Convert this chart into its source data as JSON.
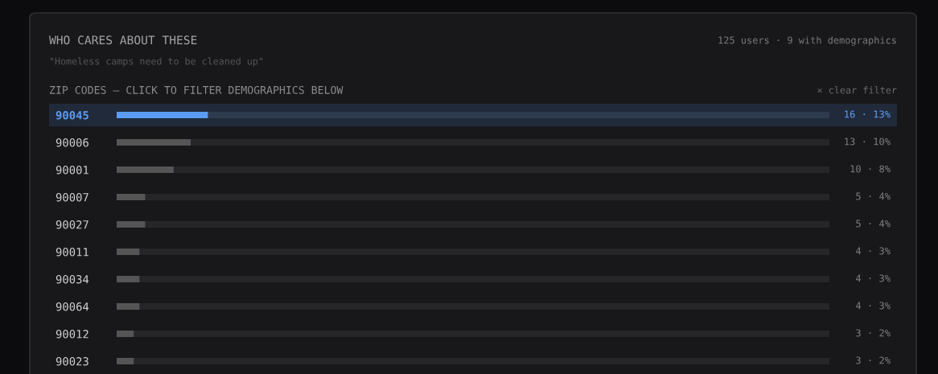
{
  "chart_data": {
    "type": "bar",
    "orientation": "horizontal",
    "title": "WHO CARES ABOUT THESE",
    "subtitle": "\"Homeless camps need to be cleaned up\"",
    "annotations": [
      "125 users · 9 with demographics",
      "ZIP CODES — CLICK TO FILTER DEMOGRAPHICS BELOW",
      "× clear filter"
    ],
    "categories": [
      "90045",
      "90006",
      "90001",
      "90007",
      "90027",
      "90011",
      "90034",
      "90064",
      "90012",
      "90023"
    ],
    "values": [
      16,
      13,
      10,
      5,
      5,
      4,
      4,
      4,
      3,
      3
    ],
    "colors": [
      "#5b9cf5",
      "#555555",
      "#555555",
      "#555555",
      "#555555",
      "#555555",
      "#555555",
      "#555555",
      "#555555",
      "#555555"
    ],
    "value_labels": [
      "16 · 13%",
      "13 · 10%",
      "10 · 8%",
      "5 · 4%",
      "5 · 4%",
      "4 · 3%",
      "4 · 3%",
      "4 · 3%",
      "3 · 2%",
      "3 · 2%"
    ],
    "xlim": [
      0,
      125
    ],
    "bands": [
      {
        "axis": "y",
        "from": "90045",
        "to": "90045",
        "color": "#212a3a"
      }
    ],
    "tick_labels": "y"
  }
}
